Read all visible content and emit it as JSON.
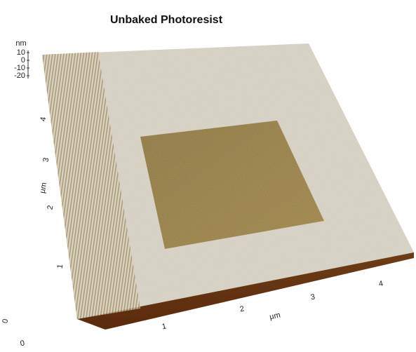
{
  "title": "Unbaked Photoresist",
  "z_axis": {
    "unit": "nm",
    "ticks": [
      10,
      0,
      -10,
      -20
    ]
  },
  "y_axis": {
    "unit": "µm",
    "ticks": [
      0,
      1,
      2,
      3,
      4
    ]
  },
  "x_axis": {
    "unit": "µm",
    "ticks": [
      0,
      1,
      2,
      3,
      4
    ]
  }
}
